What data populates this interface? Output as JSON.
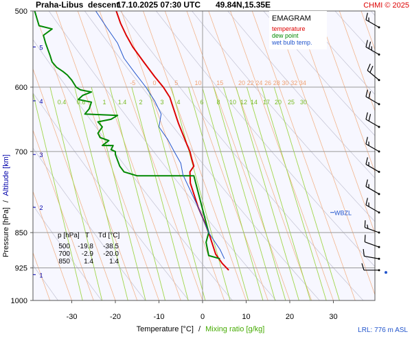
{
  "header": {
    "station": "Praha-Libus",
    "mode": "descent",
    "datetime": "17.10.2025 07:30 UTC",
    "coords": "49.84N,15.35E",
    "copyright": "CHMI © 2025"
  },
  "colors": {
    "plot_bg": "#f7f7ff",
    "temperature": "#dd0000",
    "dew_point": "#008800",
    "wet_bulb": "#2255cc",
    "isotherm": "#f2b48c",
    "dry_adiabat": "#c8c8d8",
    "mixing_ratio": "#9fd64a",
    "copyright": "#dd0000",
    "altitude_axis": "#0000aa"
  },
  "chart_data": {
    "type": "line",
    "title": "EMAGRAM",
    "xlabel": "Temperature [°C]",
    "xlabel_sep": "/",
    "xlabel_secondary": "Mixing ratio [g/kg]",
    "ylabel": "Pressure [hPa]",
    "ylabel_sep": "/",
    "ylabel_secondary": "Altitude [km]",
    "xlim": [
      -40,
      40
    ],
    "ylim": [
      1000,
      500
    ],
    "y_scale": "log",
    "skew_degrees_per_decade_ln": 0,
    "x_ticks": [
      -30,
      -20,
      -10,
      0,
      10,
      20,
      30
    ],
    "x_tick_labels": [
      "-30",
      "-20",
      "-10",
      "0",
      "10",
      "20",
      "30"
    ],
    "pressure_ticks": [
      500,
      600,
      700,
      850,
      925,
      1000
    ],
    "pressure_tick_labels": [
      "500",
      "600",
      "700",
      "850",
      "925",
      "1000"
    ],
    "altitude_ticks": [
      {
        "km": 1,
        "p": 940
      },
      {
        "km": 2,
        "p": 800
      },
      {
        "km": 3,
        "p": 705
      },
      {
        "km": 4,
        "p": 620
      },
      {
        "km": 5,
        "p": 545
      }
    ],
    "altitude_tick_labels": [
      "1",
      "2",
      "3",
      "4",
      "5"
    ],
    "isotherm_labels": [
      "-5",
      "0",
      "5",
      "10",
      "15",
      "20",
      "22",
      "24",
      "26",
      "28",
      "30",
      "32",
      "34"
    ],
    "isotherm_label_values": [
      -5,
      0,
      5,
      10,
      15,
      20,
      22,
      24,
      26,
      28,
      30,
      32,
      34
    ],
    "isotherm_label_p": 600,
    "mixing_ratio_labels": [
      "0.4",
      "0.6",
      "1",
      "1.4",
      "2",
      "3",
      "4",
      "6",
      "8",
      "10",
      "12",
      "14",
      "17",
      "20",
      "25",
      "30"
    ],
    "mixing_ratio_values": [
      0.4,
      0.6,
      1,
      1.4,
      2,
      3,
      4,
      6,
      8,
      10,
      12,
      14,
      17,
      20,
      25,
      30
    ],
    "mixing_ratio_label_p": 625,
    "grid": true,
    "legend_position": "top-right",
    "series": [
      {
        "name": "temperature",
        "points": [
          [
            6.0,
            930
          ],
          [
            4.5,
            915
          ],
          [
            3.0,
            895
          ],
          [
            1.4,
            850
          ],
          [
            0.5,
            830
          ],
          [
            -1.0,
            800
          ],
          [
            -2.0,
            775
          ],
          [
            -2.8,
            755
          ],
          [
            -2.9,
            735
          ],
          [
            -2.0,
            725
          ],
          [
            -2.5,
            712
          ],
          [
            -2.9,
            700
          ],
          [
            -3.5,
            690
          ],
          [
            -4.5,
            672
          ],
          [
            -5.5,
            655
          ],
          [
            -6.0,
            645
          ],
          [
            -7.0,
            625
          ],
          [
            -7.5,
            615
          ],
          [
            -9.0,
            600
          ],
          [
            -11.0,
            585
          ],
          [
            -13.5,
            565
          ],
          [
            -16.0,
            545
          ],
          [
            -17.5,
            530
          ],
          [
            -18.8,
            515
          ],
          [
            -19.8,
            500
          ]
        ]
      },
      {
        "name": "dew point",
        "points": [
          [
            4.0,
            905
          ],
          [
            1.4,
            898
          ],
          [
            0.8,
            870
          ],
          [
            1.4,
            850
          ],
          [
            -2.0,
            742
          ],
          [
            -15.0,
            742
          ],
          [
            -18.0,
            735
          ],
          [
            -19.0,
            725
          ],
          [
            -20.0,
            705
          ],
          [
            -20.0,
            700
          ],
          [
            -21.0,
            697
          ],
          [
            -20.5,
            690
          ],
          [
            -23.0,
            690
          ],
          [
            -21.5,
            682
          ],
          [
            -23.5,
            677
          ],
          [
            -24.0,
            670
          ],
          [
            -23.0,
            660
          ],
          [
            -24.0,
            652
          ],
          [
            -21.0,
            648
          ],
          [
            -19.5,
            642
          ],
          [
            -27.0,
            640
          ],
          [
            -26.0,
            632
          ],
          [
            -25.5,
            622
          ],
          [
            -28.5,
            618
          ],
          [
            -27.5,
            612
          ],
          [
            -25.5,
            607
          ],
          [
            -28.0,
            604
          ],
          [
            -29.0,
            600
          ],
          [
            -30.0,
            590
          ],
          [
            -31.0,
            583
          ],
          [
            -32.0,
            578
          ],
          [
            -33.5,
            572
          ],
          [
            -34.5,
            565
          ],
          [
            -35.0,
            556
          ],
          [
            -35.5,
            548
          ],
          [
            -36.0,
            540
          ],
          [
            -36.5,
            530
          ],
          [
            -34.5,
            522
          ],
          [
            -37.5,
            518
          ],
          [
            -38.5,
            500
          ]
        ]
      },
      {
        "name": "wet bulb temp.",
        "points": [
          [
            5.0,
            905
          ],
          [
            4.0,
            885
          ],
          [
            1.4,
            850
          ],
          [
            -1.0,
            800
          ],
          [
            -4.5,
            740
          ],
          [
            -5.0,
            720
          ],
          [
            -6.5,
            700
          ],
          [
            -8.0,
            680
          ],
          [
            -10.0,
            660
          ],
          [
            -9.5,
            640
          ],
          [
            -11.0,
            620
          ],
          [
            -13.0,
            600
          ],
          [
            -15.5,
            580
          ],
          [
            -18.0,
            560
          ],
          [
            -19.5,
            540
          ],
          [
            -22.0,
            520
          ],
          [
            -24.5,
            500
          ]
        ]
      }
    ],
    "table": {
      "headers": [
        "p [hPa]",
        "T",
        "Td [°C]"
      ],
      "rows": [
        [
          "500",
          "-19.8",
          "-38.5"
        ],
        [
          "700",
          "-2.9",
          "-20.0"
        ],
        [
          "850",
          "1.4",
          "1.4"
        ]
      ]
    },
    "annotations": {
      "wbzl_label": "WBZL",
      "wbzl_p": 810,
      "lrl_label": "LRL: 776 m ASL"
    },
    "wind_barbs": [
      {
        "p": 520,
        "dir": 300,
        "kt": 15
      },
      {
        "p": 555,
        "dir": 300,
        "kt": 25
      },
      {
        "p": 590,
        "dir": 310,
        "kt": 20
      },
      {
        "p": 625,
        "dir": 300,
        "kt": 20
      },
      {
        "p": 660,
        "dir": 300,
        "kt": 20
      },
      {
        "p": 700,
        "dir": 300,
        "kt": 15
      },
      {
        "p": 735,
        "dir": 300,
        "kt": 15
      },
      {
        "p": 775,
        "dir": 300,
        "kt": 15
      },
      {
        "p": 810,
        "dir": 300,
        "kt": 15
      },
      {
        "p": 850,
        "dir": 290,
        "kt": 15
      },
      {
        "p": 880,
        "dir": 290,
        "kt": 10
      },
      {
        "p": 905,
        "dir": 280,
        "kt": 10
      },
      {
        "p": 930,
        "dir": 270,
        "kt": 10
      }
    ]
  },
  "legend": {
    "title": "EMAGRAM",
    "items": [
      {
        "label": "temperature",
        "color": "#dd0000"
      },
      {
        "label": "dew point",
        "color": "#008800"
      },
      {
        "label": "wet bulb temp.",
        "color": "#2255cc"
      }
    ]
  }
}
